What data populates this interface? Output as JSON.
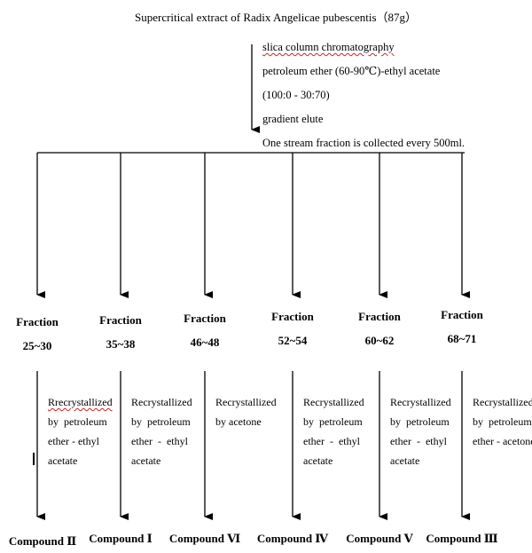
{
  "flowchart": {
    "source": "Supercritical extract of Radix Angelicae pubescentis（87g）",
    "steps": [
      "slica column chromatography",
      "petroleum ether (60-90℃)-ethyl acetate",
      "(100:0 - 30:70)",
      "gradient  elute",
      "One stream fraction is collected every 500ml."
    ],
    "fractions": [
      {
        "label": "Fraction",
        "range": "25~30",
        "process": [
          "Rrecrystallized",
          "by  petroleum",
          "ether - ethyl",
          "acetate"
        ],
        "compound": "Compound Ⅱ"
      },
      {
        "label": "Fraction",
        "range": "35~38",
        "process": [
          "Recrystallized",
          "by  petroleum",
          "ether  -  ethyl",
          "acetate"
        ],
        "compound": "Compound Ⅰ"
      },
      {
        "label": "Fraction",
        "range": "46~48",
        "process": [
          "Recrystallized",
          "by acetone"
        ],
        "compound": "Compound Ⅵ"
      },
      {
        "label": "Fraction",
        "range": "52~54",
        "process": [
          "Recrystallized",
          "by  petroleum",
          "ether  -  ethyl",
          "acetate"
        ],
        "compound": "Compound Ⅳ"
      },
      {
        "label": "Fraction",
        "range": "60~62",
        "process": [
          "Recrystallized",
          "by  petroleum",
          "ether  -  ethyl",
          "acetate"
        ],
        "compound": "Compound Ⅴ"
      },
      {
        "label": "Fraction",
        "range": "68~71",
        "process": [
          "Recrystallized",
          "by  petroleum",
          "ether - acetone"
        ],
        "compound": "Compound Ⅲ"
      }
    ],
    "colors": {
      "line": "#000000",
      "spellcheck_underline": "#d02020"
    }
  }
}
